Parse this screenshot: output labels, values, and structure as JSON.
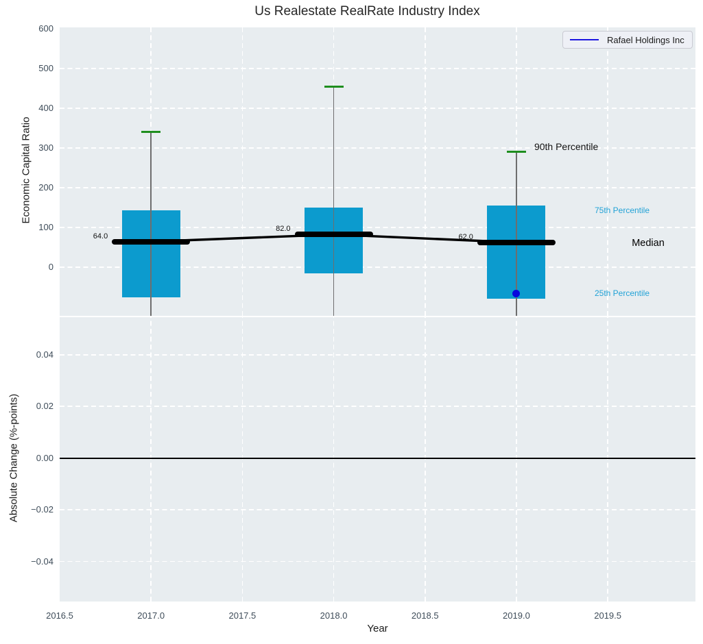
{
  "chart_data": {
    "type": "box",
    "title": "Us Realestate RealRate Industry Index",
    "legend": {
      "label": "Rafael Holdings Inc",
      "line_color": "#1b14e0",
      "position": "top-right"
    },
    "x_axis": {
      "label": "Year",
      "ticks": [
        "2016.5",
        "2017.0",
        "2017.5",
        "2018.0",
        "2018.5",
        "2019.0",
        "2019.5"
      ],
      "tick_values": [
        2016.5,
        2017.0,
        2017.5,
        2018.0,
        2018.5,
        2019.0,
        2019.5
      ],
      "xlim": [
        2016.5,
        2019.98
      ],
      "grid": true
    },
    "top_panel": {
      "ylabel": "Economic Capital Ratio",
      "yticks": [
        "0",
        "100",
        "200",
        "300",
        "400",
        "500",
        "600"
      ],
      "ytick_values": [
        0,
        100,
        200,
        300,
        400,
        500,
        600
      ],
      "ylim": [
        -123,
        604
      ],
      "grid": true,
      "boxes": [
        {
          "year": 2017,
          "p90": 340,
          "p75": 143,
          "median": 64,
          "p25": -76,
          "median_label": "64.0"
        },
        {
          "year": 2018,
          "p90": 455,
          "p75": 150,
          "median": 82,
          "p25": -16,
          "median_label": "82.0"
        },
        {
          "year": 2019,
          "p90": 290,
          "p75": 155,
          "median": 62,
          "p25": -80,
          "median_label": "62.0"
        }
      ],
      "median_line": [
        {
          "year": 2017,
          "value": 64
        },
        {
          "year": 2018,
          "value": 82
        },
        {
          "year": 2019,
          "value": 62
        }
      ],
      "company_point": {
        "year": 2019,
        "value": -67
      },
      "annotations": {
        "p90_label": "90th Percentile",
        "p75_label": "75th Percentile",
        "median_label": "Median",
        "p25_label": "25th Percentile"
      }
    },
    "bottom_panel": {
      "ylabel": "Absolute Change (%-points)",
      "yticks": [
        "0.04",
        "0.02",
        "0.00",
        "−0.02",
        "−0.04"
      ],
      "ytick_values": [
        0.04,
        0.02,
        0.0,
        -0.02,
        -0.04
      ],
      "ylim": [
        -0.0555,
        0.0545
      ],
      "zero_line": 0.0,
      "grid": true
    },
    "colors": {
      "plot_bg": "#e8edf0",
      "grid": "#ffffff",
      "box_fill": "#0c9bce",
      "whisker": "#6e6e6e",
      "cap_green": "#1e8e1e",
      "median_black": "#000000",
      "company_blue": "#0808dd",
      "tick_label": "#3e4c59",
      "percentile_cyan": "#22a2d6"
    }
  }
}
